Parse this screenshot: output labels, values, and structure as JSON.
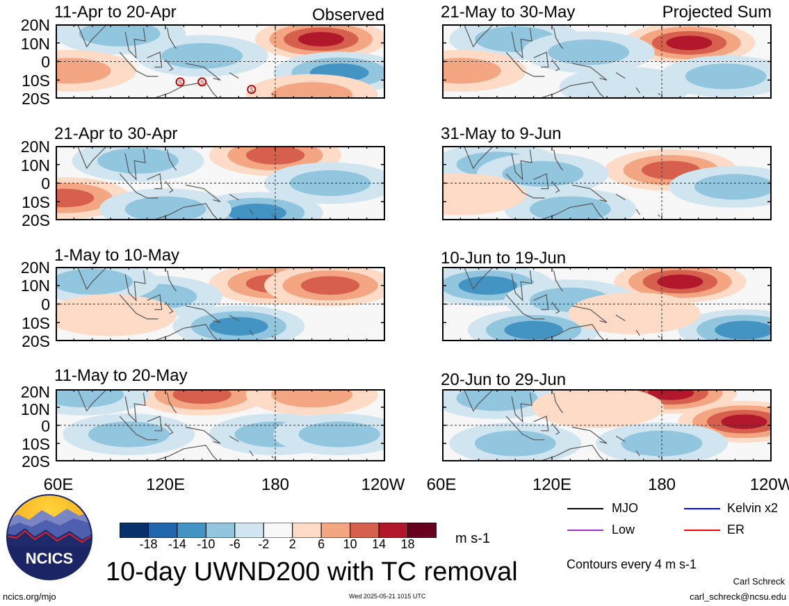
{
  "chart_data": {
    "type": "heatmap",
    "title": "10-day UWND200 with TC removal",
    "variable": "UWND200",
    "units": "m s-1",
    "contour_note": "Contours every 4 m s-1",
    "colorbar_ticks": [
      "-18",
      "-14",
      "-10",
      "-6",
      "-2",
      "2",
      "6",
      "10",
      "14",
      "18"
    ],
    "colorbar_colors": [
      "#08306b",
      "#2166ac",
      "#4393c3",
      "#92c5de",
      "#d1e5f0",
      "#f7f7f7",
      "#fddbc7",
      "#f4a582",
      "#d6604d",
      "#b2182b",
      "#67001f"
    ],
    "x_ticks": [
      "60E",
      "120E",
      "180",
      "120W"
    ],
    "x_range": [
      60,
      240
    ],
    "y_ticks": [
      "20N",
      "10N",
      "0",
      "10S",
      "20S"
    ],
    "y_range": [
      -20,
      20
    ],
    "column_labels": [
      "Observed",
      "Projected Sum"
    ],
    "panels_observed": [
      {
        "period": "11-Apr to 20-Apr",
        "features": [
          {
            "lon": 205,
            "lat": 12,
            "value": 14
          },
          {
            "lon": 95,
            "lat": 15,
            "value": -6
          },
          {
            "lon": 215,
            "lat": -6,
            "value": -10
          },
          {
            "lon": 140,
            "lat": 3,
            "value": -6
          },
          {
            "lon": 68,
            "lat": -5,
            "value": 6
          },
          {
            "lon": 200,
            "lat": -18,
            "value": 6
          }
        ],
        "tc_markers": [
          {
            "lon": 128,
            "lat": -11,
            "label": "S"
          },
          {
            "lon": 140,
            "lat": -11,
            "label": "S"
          },
          {
            "lon": 167,
            "lat": -15,
            "label": "S"
          }
        ]
      },
      {
        "period": "21-Apr to 30-Apr",
        "features": [
          {
            "lon": 180,
            "lat": 15,
            "value": 10
          },
          {
            "lon": 105,
            "lat": 12,
            "value": -6
          },
          {
            "lon": 65,
            "lat": -8,
            "value": 10
          },
          {
            "lon": 170,
            "lat": -16,
            "value": -10
          },
          {
            "lon": 120,
            "lat": -14,
            "value": -6
          },
          {
            "lon": 210,
            "lat": 0,
            "value": -6
          }
        ],
        "tc_markers": []
      },
      {
        "period": "1-May to 10-May",
        "features": [
          {
            "lon": 180,
            "lat": 11,
            "value": 10
          },
          {
            "lon": 210,
            "lat": 10,
            "value": 10
          },
          {
            "lon": 115,
            "lat": 4,
            "value": -6
          },
          {
            "lon": 160,
            "lat": -12,
            "value": -10
          },
          {
            "lon": 80,
            "lat": 12,
            "value": -6
          },
          {
            "lon": 90,
            "lat": -6,
            "value": 2
          }
        ],
        "tc_markers": []
      },
      {
        "period": "11-May to 20-May",
        "features": [
          {
            "lon": 140,
            "lat": 17,
            "value": 10
          },
          {
            "lon": 200,
            "lat": 17,
            "value": 6
          },
          {
            "lon": 75,
            "lat": 17,
            "value": -6
          },
          {
            "lon": 180,
            "lat": -5,
            "value": -6
          },
          {
            "lon": 215,
            "lat": -5,
            "value": -6
          },
          {
            "lon": 100,
            "lat": -5,
            "value": -6
          }
        ],
        "tc_markers": []
      }
    ],
    "panels_projected": [
      {
        "period": "21-May to 30-May",
        "features": [
          {
            "lon": 195,
            "lat": 10,
            "value": 14
          },
          {
            "lon": 100,
            "lat": 12,
            "value": -6
          },
          {
            "lon": 140,
            "lat": 5,
            "value": -6
          },
          {
            "lon": 70,
            "lat": -5,
            "value": 6
          },
          {
            "lon": 215,
            "lat": -8,
            "value": -6
          },
          {
            "lon": 160,
            "lat": -14,
            "value": -2
          }
        ],
        "tc_markers": []
      },
      {
        "period": "31-May to 9-Jun",
        "features": [
          {
            "lon": 185,
            "lat": 7,
            "value": 10
          },
          {
            "lon": 90,
            "lat": 10,
            "value": -6
          },
          {
            "lon": 115,
            "lat": 5,
            "value": -6
          },
          {
            "lon": 220,
            "lat": -2,
            "value": -6
          },
          {
            "lon": 130,
            "lat": -14,
            "value": -6
          },
          {
            "lon": 70,
            "lat": -6,
            "value": 2
          }
        ],
        "tc_markers": []
      },
      {
        "period": "10-Jun to 19-Jun",
        "features": [
          {
            "lon": 190,
            "lat": 12,
            "value": 14
          },
          {
            "lon": 85,
            "lat": 10,
            "value": -10
          },
          {
            "lon": 130,
            "lat": 2,
            "value": -6
          },
          {
            "lon": 110,
            "lat": -14,
            "value": -10
          },
          {
            "lon": 225,
            "lat": -14,
            "value": -10
          },
          {
            "lon": 165,
            "lat": -5,
            "value": 2
          }
        ],
        "tc_markers": []
      },
      {
        "period": "20-Jun to 29-Jun",
        "features": [
          {
            "lon": 185,
            "lat": 18,
            "value": 14
          },
          {
            "lon": 225,
            "lat": 2,
            "value": 14
          },
          {
            "lon": 90,
            "lat": 15,
            "value": -6
          },
          {
            "lon": 100,
            "lat": -10,
            "value": -6
          },
          {
            "lon": 180,
            "lat": -10,
            "value": -6
          },
          {
            "lon": 145,
            "lat": 10,
            "value": 2
          }
        ],
        "tc_markers": []
      }
    ]
  },
  "legend": {
    "items": [
      {
        "label": "MJO",
        "color": "#000000"
      },
      {
        "label": "Kelvin x2",
        "color": "#0000ff"
      },
      {
        "label": "Low",
        "color": "#9933cc"
      },
      {
        "label": "ER",
        "color": "#ff0000"
      }
    ]
  },
  "logo": {
    "text": "NCICS"
  },
  "footer": {
    "left": "ncics.org/mjo",
    "timestamp": "Wed 2025-05-21 1015 UTC",
    "author": "Carl Schreck",
    "email": "carl_schreck@ncsu.edu"
  }
}
